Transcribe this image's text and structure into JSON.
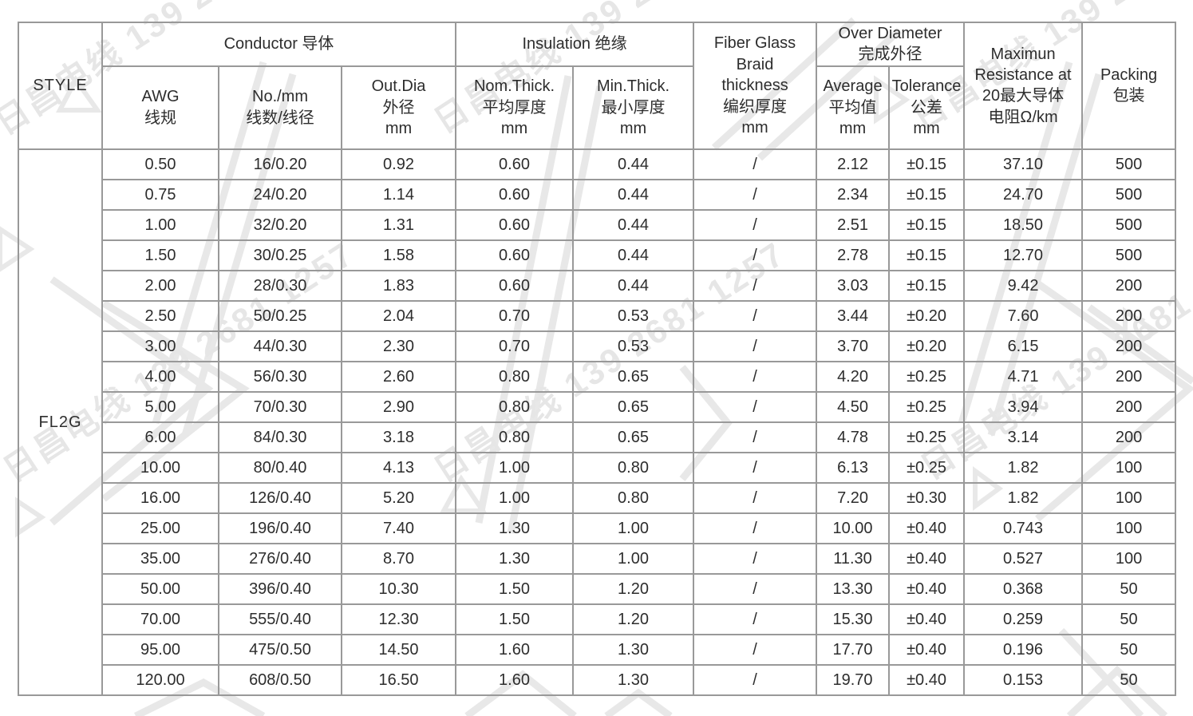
{
  "watermark": {
    "text": "日昌电线 139 2681 1257"
  },
  "colors": {
    "border": "#999999",
    "text": "#2d2d2d",
    "watermark": "#e6e6e6"
  },
  "table": {
    "style_value": "FL2G",
    "header": {
      "style": "STYLE",
      "conductor_group": "Conductor 导体",
      "insulation_group": "Insulation 绝缘",
      "awg": {
        "l1": "AWG",
        "l2": "线规"
      },
      "no_mm": {
        "l1": "No./mm",
        "l2": "线数/线径"
      },
      "out_dia": {
        "l1": "Out.Dia",
        "l2": "外径",
        "l3": "mm"
      },
      "nom_thick": {
        "l1": "Nom.Thick.",
        "l2": "平均厚度",
        "l3": "mm"
      },
      "min_thick": {
        "l1": "Min.Thick.",
        "l2": "最小厚度",
        "l3": "mm"
      },
      "fiber_glass": {
        "l1": "Fiber Glass",
        "l2": "Braid",
        "l3": "thickness",
        "l4": "编织厚度",
        "l5": "mm"
      },
      "over_diameter": {
        "l1": "Over Diameter",
        "l2": "完成外径"
      },
      "average": {
        "l1": "Average",
        "l2": "平均值",
        "l3": "mm"
      },
      "tolerance": {
        "l1": "Tolerance",
        "l2": "公差",
        "l3": "mm"
      },
      "resistance": {
        "l1": "Maximun",
        "l2": "Resistance at",
        "l3": "20最大导体",
        "l4": "电阻Ω/km"
      },
      "packing": {
        "l1": "Packing",
        "l2": "包装"
      }
    },
    "columns": [
      "awg",
      "no_mm",
      "out_dia",
      "nom_thick",
      "min_thick",
      "fiber_glass",
      "average",
      "tolerance",
      "resistance",
      "packing"
    ],
    "rows": [
      [
        "0.50",
        "16/0.20",
        "0.92",
        "0.60",
        "0.44",
        "/",
        "2.12",
        "±0.15",
        "37.10",
        "500"
      ],
      [
        "0.75",
        "24/0.20",
        "1.14",
        "0.60",
        "0.44",
        "/",
        "2.34",
        "±0.15",
        "24.70",
        "500"
      ],
      [
        "1.00",
        "32/0.20",
        "1.31",
        "0.60",
        "0.44",
        "/",
        "2.51",
        "±0.15",
        "18.50",
        "500"
      ],
      [
        "1.50",
        "30/0.25",
        "1.58",
        "0.60",
        "0.44",
        "/",
        "2.78",
        "±0.15",
        "12.70",
        "500"
      ],
      [
        "2.00",
        "28/0.30",
        "1.83",
        "0.60",
        "0.44",
        "/",
        "3.03",
        "±0.15",
        "9.42",
        "200"
      ],
      [
        "2.50",
        "50/0.25",
        "2.04",
        "0.70",
        "0.53",
        "/",
        "3.44",
        "±0.20",
        "7.60",
        "200"
      ],
      [
        "3.00",
        "44/0.30",
        "2.30",
        "0.70",
        "0.53",
        "/",
        "3.70",
        "±0.20",
        "6.15",
        "200"
      ],
      [
        "4.00",
        "56/0.30",
        "2.60",
        "0.80",
        "0.65",
        "/",
        "4.20",
        "±0.25",
        "4.71",
        "200"
      ],
      [
        "5.00",
        "70/0.30",
        "2.90",
        "0.80",
        "0.65",
        "/",
        "4.50",
        "±0.25",
        "3.94",
        "200"
      ],
      [
        "6.00",
        "84/0.30",
        "3.18",
        "0.80",
        "0.65",
        "/",
        "4.78",
        "±0.25",
        "3.14",
        "200"
      ],
      [
        "10.00",
        "80/0.40",
        "4.13",
        "1.00",
        "0.80",
        "/",
        "6.13",
        "±0.25",
        "1.82",
        "100"
      ],
      [
        "16.00",
        "126/0.40",
        "5.20",
        "1.00",
        "0.80",
        "/",
        "7.20",
        "±0.30",
        "1.82",
        "100"
      ],
      [
        "25.00",
        "196/0.40",
        "7.40",
        "1.30",
        "1.00",
        "/",
        "10.00",
        "±0.40",
        "0.743",
        "100"
      ],
      [
        "35.00",
        "276/0.40",
        "8.70",
        "1.30",
        "1.00",
        "/",
        "11.30",
        "±0.40",
        "0.527",
        "100"
      ],
      [
        "50.00",
        "396/0.40",
        "10.30",
        "1.50",
        "1.20",
        "/",
        "13.30",
        "±0.40",
        "0.368",
        "50"
      ],
      [
        "70.00",
        "555/0.40",
        "12.30",
        "1.50",
        "1.20",
        "/",
        "15.30",
        "±0.40",
        "0.259",
        "50"
      ],
      [
        "95.00",
        "475/0.50",
        "14.50",
        "1.60",
        "1.30",
        "/",
        "17.70",
        "±0.40",
        "0.196",
        "50"
      ],
      [
        "120.00",
        "608/0.50",
        "16.50",
        "1.60",
        "1.30",
        "/",
        "19.70",
        "±0.40",
        "0.153",
        "50"
      ]
    ]
  }
}
